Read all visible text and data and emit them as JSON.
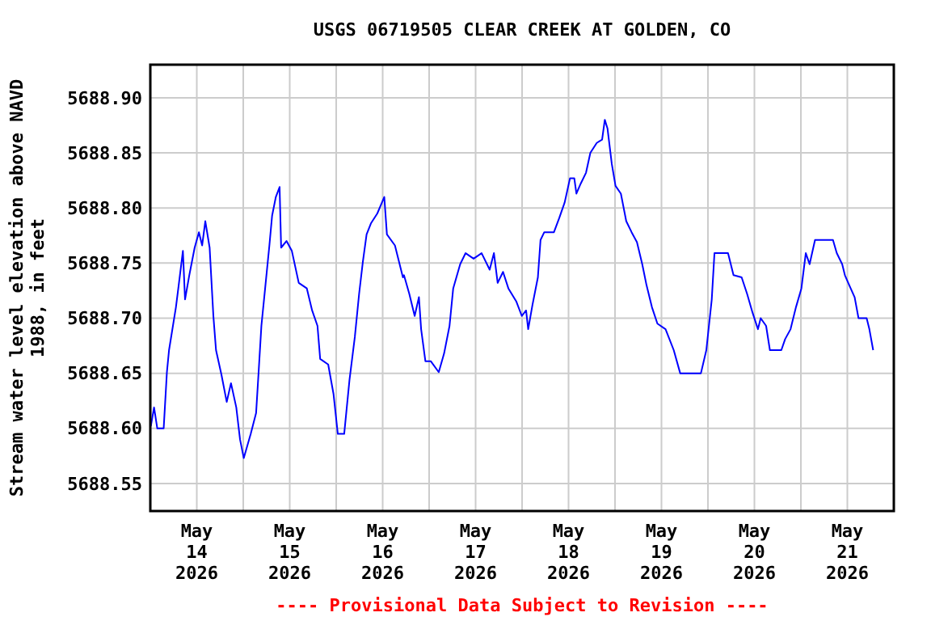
{
  "chart_data": {
    "type": "line",
    "title": "USGS 06719505 CLEAR CREEK AT GOLDEN, CO",
    "ylabel": "Stream water level elevation above NAVD 1988, in feet",
    "annotations": [
      "---- Provisional Data Subject to Revision ----"
    ],
    "xlim": [
      "2026-05-14T00:00",
      "2026-05-22T00:00"
    ],
    "xticks": [
      {
        "value": "2026-05-14T12:00",
        "label": "May\n14\n2026"
      },
      {
        "value": "2026-05-15T12:00",
        "label": "May\n15\n2026"
      },
      {
        "value": "2026-05-16T12:00",
        "label": "May\n16\n2026"
      },
      {
        "value": "2026-05-17T12:00",
        "label": "May\n17\n2026"
      },
      {
        "value": "2026-05-18T12:00",
        "label": "May\n18\n2026"
      },
      {
        "value": "2026-05-19T12:00",
        "label": "May\n19\n2026"
      },
      {
        "value": "2026-05-20T12:00",
        "label": "May\n20\n2026"
      },
      {
        "value": "2026-05-21T12:00",
        "label": "May\n21\n2026"
      },
      {
        "value": "2026-05-15T00:00",
        "label": null
      },
      {
        "value": "2026-05-16T00:00",
        "label": null
      },
      {
        "value": "2026-05-17T00:00",
        "label": null
      },
      {
        "value": "2026-05-18T00:00",
        "label": null
      },
      {
        "value": "2026-05-19T00:00",
        "label": null
      },
      {
        "value": "2026-05-20T00:00",
        "label": null
      },
      {
        "value": "2026-05-21T00:00",
        "label": null
      }
    ],
    "ylim": [
      5688.525,
      5688.93
    ],
    "yticks": [
      {
        "value": 5688.55,
        "label": "5688.55"
      },
      {
        "value": 5688.6,
        "label": "5688.60"
      },
      {
        "value": 5688.65,
        "label": "5688.65"
      },
      {
        "value": 5688.7,
        "label": "5688.70"
      },
      {
        "value": 5688.75,
        "label": "5688.75"
      },
      {
        "value": 5688.8,
        "label": "5688.80"
      },
      {
        "value": 5688.85,
        "label": "5688.85"
      },
      {
        "value": 5688.9,
        "label": "5688.90"
      }
    ],
    "grid": true,
    "series": [
      {
        "color": "#0000ff",
        "x": [
          "2026-05-14T00:08",
          "2026-05-14T00:58",
          "2026-05-14T01:48",
          "2026-05-14T03:27",
          "2026-05-14T04:17",
          "2026-05-14T04:50",
          "2026-05-14T06:37",
          "2026-05-14T07:18",
          "2026-05-14T08:25",
          "2026-05-14T08:58",
          "2026-05-14T10:04",
          "2026-05-14T11:27",
          "2026-05-14T12:33",
          "2026-05-14T13:23",
          "2026-05-14T14:12",
          "2026-05-14T15:19",
          "2026-05-14T16:17",
          "2026-05-14T16:58",
          "2026-05-14T18:21",
          "2026-05-14T19:44",
          "2026-05-14T20:50",
          "2026-05-14T22:12",
          "2026-05-14T23:10",
          "2026-05-15T00:08",
          "2026-05-15T01:56",
          "2026-05-15T03:19",
          "2026-05-15T04:00",
          "2026-05-15T04:41",
          "2026-05-15T05:39",
          "2026-05-15T06:45",
          "2026-05-15T07:27",
          "2026-05-15T08:25",
          "2026-05-15T09:23",
          "2026-05-15T09:47",
          "2026-05-15T11:10",
          "2026-05-15T12:33",
          "2026-05-15T14:20",
          "2026-05-15T16:25",
          "2026-05-15T17:47",
          "2026-05-15T19:10",
          "2026-05-15T19:52",
          "2026-05-15T21:56",
          "2026-05-15T23:19",
          "2026-05-16T00:25",
          "2026-05-16T02:04",
          "2026-05-16T03:26",
          "2026-05-16T04:49",
          "2026-05-16T05:55",
          "2026-05-16T06:53",
          "2026-05-16T07:51",
          "2026-05-16T08:58",
          "2026-05-16T10:37",
          "2026-05-16T12:25",
          "2026-05-16T13:06",
          "2026-05-16T15:10",
          "2026-05-16T17:14",
          "2026-05-16T17:30",
          "2026-05-16T18:53",
          "2026-05-16T20:16",
          "2026-05-16T21:22",
          "2026-05-16T21:56",
          "2026-05-16T23:02",
          "2026-05-17T00:25",
          "2026-05-17T02:29",
          "2026-05-17T03:52",
          "2026-05-17T05:16",
          "2026-05-17T06:13",
          "2026-05-17T08:01",
          "2026-05-17T09:25",
          "2026-05-17T11:29",
          "2026-05-17T13:33",
          "2026-05-17T15:38",
          "2026-05-17T16:44",
          "2026-05-17T17:42",
          "2026-05-17T19:05",
          "2026-05-17T20:28",
          "2026-05-17T22:32",
          "2026-05-17T23:56",
          "2026-05-18T01:02",
          "2026-05-18T01:35",
          "2026-05-18T02:41",
          "2026-05-18T04:05",
          "2026-05-18T04:46",
          "2026-05-18T05:44",
          "2026-05-18T08:14",
          "2026-05-18T09:37",
          "2026-05-18T11:00",
          "2026-05-18T12:23",
          "2026-05-18T13:29",
          "2026-05-18T14:02",
          "2026-05-18T15:08",
          "2026-05-18T16:31",
          "2026-05-18T17:38",
          "2026-05-18T19:17",
          "2026-05-18T20:40",
          "2026-05-18T21:22",
          "2026-05-18T22:04",
          "2026-05-18T23:10",
          "2026-05-19T00:08",
          "2026-05-19T01:31",
          "2026-05-19T02:54",
          "2026-05-19T04:17",
          "2026-05-19T05:40",
          "2026-05-19T07:02",
          "2026-05-19T08:08",
          "2026-05-19T09:32",
          "2026-05-19T10:57",
          "2026-05-19T13:03",
          "2026-05-19T15:10",
          "2026-05-19T16:50",
          "2026-05-19T22:11",
          "2026-05-19T23:35",
          "2026-05-20T00:59",
          "2026-05-20T01:41",
          "2026-05-20T05:11",
          "2026-05-20T06:36",
          "2026-05-20T08:42",
          "2026-05-20T10:07",
          "2026-05-20T11:31",
          "2026-05-20T12:55",
          "2026-05-20T13:37",
          "2026-05-20T15:01",
          "2026-05-20T16:00",
          "2026-05-20T18:57",
          "2026-05-20T19:56",
          "2026-05-20T21:20",
          "2026-05-20T22:44",
          "2026-05-21T00:08",
          "2026-05-21T01:16",
          "2026-05-21T02:15",
          "2026-05-21T03:39",
          "2026-05-21T08:17",
          "2026-05-21T09:16",
          "2026-05-21T10:40",
          "2026-05-21T11:22",
          "2026-05-21T12:29",
          "2026-05-21T13:53",
          "2026-05-21T14:53",
          "2026-05-21T16:59",
          "2026-05-21T17:41",
          "2026-05-21T18:40"
        ],
        "values": [
          5688.602,
          5688.619,
          5688.6,
          5688.6,
          5688.651,
          5688.671,
          5688.71,
          5688.729,
          5688.761,
          5688.717,
          5688.739,
          5688.764,
          5688.778,
          5688.766,
          5688.788,
          5688.764,
          5688.702,
          5688.671,
          5688.649,
          5688.624,
          5688.641,
          5688.619,
          5688.59,
          5688.573,
          5688.595,
          5688.614,
          5688.653,
          5688.693,
          5688.727,
          5688.766,
          5688.793,
          5688.81,
          5688.819,
          5688.764,
          5688.77,
          5688.761,
          5688.732,
          5688.727,
          5688.707,
          5688.693,
          5688.663,
          5688.658,
          5688.631,
          5688.595,
          5688.595,
          5688.644,
          5688.683,
          5688.722,
          5688.751,
          5688.776,
          5688.786,
          5688.795,
          5688.81,
          5688.776,
          5688.766,
          5688.737,
          5688.739,
          5688.722,
          5688.702,
          5688.719,
          5688.69,
          5688.661,
          5688.661,
          5688.651,
          5688.668,
          5688.693,
          5688.727,
          5688.749,
          5688.759,
          5688.754,
          5688.759,
          5688.744,
          5688.759,
          5688.732,
          5688.742,
          5688.727,
          5688.715,
          5688.702,
          5688.707,
          5688.69,
          5688.712,
          5688.737,
          5688.771,
          5688.778,
          5688.778,
          5688.791,
          5688.805,
          5688.827,
          5688.827,
          5688.813,
          5688.822,
          5688.832,
          5688.85,
          5688.859,
          5688.862,
          5688.88,
          5688.872,
          5688.84,
          5688.82,
          5688.813,
          5688.788,
          5688.778,
          5688.769,
          5688.749,
          5688.73,
          5688.71,
          5688.695,
          5688.69,
          5688.671,
          5688.65,
          5688.65,
          5688.671,
          5688.717,
          5688.759,
          5688.759,
          5688.739,
          5688.737,
          5688.722,
          5688.705,
          5688.69,
          5688.7,
          5688.693,
          5688.671,
          5688.671,
          5688.681,
          5688.69,
          5688.71,
          5688.727,
          5688.759,
          5688.749,
          5688.771,
          5688.771,
          5688.759,
          5688.749,
          5688.739,
          5688.73,
          5688.719,
          5688.7,
          5688.7,
          5688.69,
          5688.671
        ]
      }
    ]
  }
}
